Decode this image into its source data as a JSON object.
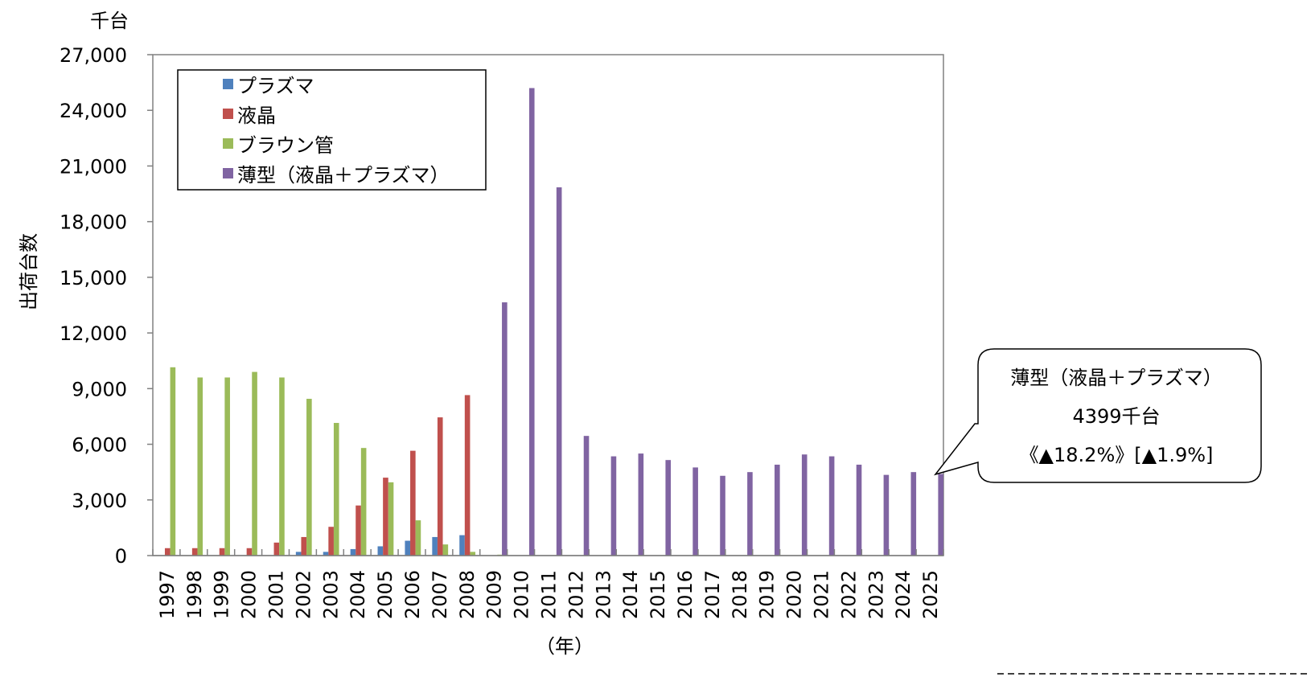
{
  "chart_data": {
    "type": "bar",
    "unit_label": "千台",
    "ylabel": "出荷台数",
    "xlabel": "（年）",
    "ylim": [
      0,
      27000
    ],
    "yticks": [
      "0",
      "3,000",
      "6,000",
      "9,000",
      "12,000",
      "15,000",
      "18,000",
      "21,000",
      "24,000",
      "27,000"
    ],
    "ytick_values": [
      0,
      3000,
      6000,
      9000,
      12000,
      15000,
      18000,
      21000,
      24000,
      27000
    ],
    "categories": [
      "1997",
      "1998",
      "1999",
      "2000",
      "2001",
      "2002",
      "2003",
      "2004",
      "2005",
      "2006",
      "2007",
      "2008",
      "2009",
      "2010",
      "2011",
      "2012",
      "2013",
      "2014",
      "2015",
      "2016",
      "2017",
      "2018",
      "2019",
      "2020",
      "2021",
      "2022",
      "2023",
      "2024",
      "2025"
    ],
    "series": [
      {
        "name": "プラズマ",
        "color": "#4f81bd",
        "values": [
          0,
          0,
          0,
          0,
          0,
          200,
          200,
          350,
          500,
          800,
          1000,
          1100,
          null,
          null,
          null,
          null,
          null,
          null,
          null,
          null,
          null,
          null,
          null,
          null,
          null,
          null,
          null,
          null,
          null
        ]
      },
      {
        "name": "液晶",
        "color": "#c0504d",
        "values": [
          400,
          400,
          400,
          400,
          700,
          1000,
          1550,
          2700,
          4200,
          5650,
          7450,
          8650,
          null,
          null,
          null,
          null,
          null,
          null,
          null,
          null,
          null,
          null,
          null,
          null,
          null,
          null,
          null,
          null,
          null
        ]
      },
      {
        "name": "ブラウン管",
        "color": "#9bbb59",
        "values": [
          10150,
          9600,
          9600,
          9900,
          9600,
          8450,
          7150,
          5800,
          3950,
          1900,
          600,
          200,
          50,
          null,
          null,
          null,
          null,
          null,
          null,
          null,
          null,
          null,
          null,
          null,
          null,
          null,
          null,
          null,
          null
        ]
      },
      {
        "name": "薄型（液晶＋プラズマ）",
        "color": "#8064a2",
        "values": [
          null,
          null,
          null,
          null,
          null,
          null,
          null,
          null,
          null,
          null,
          null,
          null,
          13650,
          25200,
          19850,
          6450,
          5350,
          5500,
          5150,
          4750,
          4300,
          4500,
          4900,
          5450,
          5350,
          4900,
          4350,
          4500,
          4399
        ]
      }
    ],
    "legend_position": "top-left",
    "grid": false,
    "callout": {
      "line1": "薄型（液晶＋プラズマ）",
      "line2": "4399千台",
      "line3": "《▲18.2%》[▲1.9%]"
    }
  }
}
